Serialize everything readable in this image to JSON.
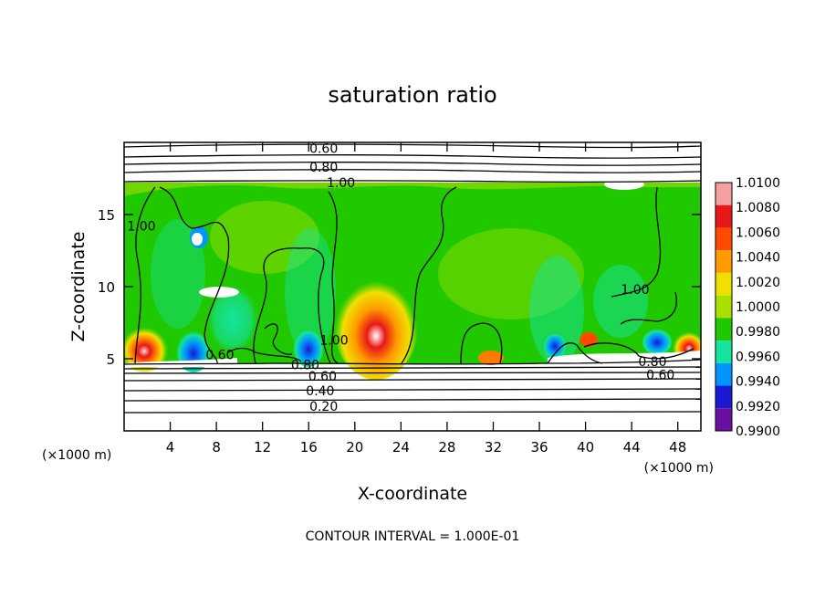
{
  "chart_data": {
    "type": "heatmap",
    "title": "saturation ratio",
    "xlabel": "X-coordinate",
    "ylabel": "Z-coordinate",
    "x_unit_label": "(×1000 m)",
    "z_unit_label": "(×1000 m)",
    "footer": "CONTOUR INTERVAL = 1.000E-01",
    "xlim": [
      0,
      50
    ],
    "ylim": [
      0,
      20
    ],
    "x_ticks": [
      4,
      8,
      12,
      16,
      20,
      24,
      28,
      32,
      36,
      40,
      44,
      48
    ],
    "y_ticks": [
      5,
      10,
      15
    ],
    "colorbar": {
      "levels": [
        "1.0100",
        "1.0080",
        "1.0060",
        "1.0040",
        "1.0020",
        "1.0000",
        "0.9980",
        "0.9960",
        "0.9940",
        "0.9920",
        "0.9900"
      ],
      "colors": [
        "#f4a0a0",
        "#e81818",
        "#ff4a00",
        "#ff9a00",
        "#f0e000",
        "#a8e000",
        "#20c800",
        "#14e4a0",
        "#0096ff",
        "#1a1ad2",
        "#6a10a0"
      ]
    },
    "contour_labels": [
      {
        "text": "0.60",
        "x": 17.3,
        "z": 19.6
      },
      {
        "text": "0.80",
        "x": 17.3,
        "z": 18.3
      },
      {
        "text": "1.00",
        "x": 18.8,
        "z": 17.2
      },
      {
        "text": "1.00",
        "x": 1.5,
        "z": 14.2
      },
      {
        "text": "1.00",
        "x": 18.2,
        "z": 6.3
      },
      {
        "text": "1.00",
        "x": 44.3,
        "z": 9.8
      },
      {
        "text": "0.80",
        "x": 15.7,
        "z": 4.6
      },
      {
        "text": "0.60",
        "x": 17.2,
        "z": 3.8
      },
      {
        "text": "0.40",
        "x": 17.0,
        "z": 2.8
      },
      {
        "text": "0.20",
        "x": 17.3,
        "z": 1.7
      },
      {
        "text": "0.60",
        "x": 46.5,
        "z": 3.9
      },
      {
        "text": "0.80",
        "x": 45.8,
        "z": 4.8
      },
      {
        "text": "0.60",
        "x": 8.3,
        "z": 5.3
      }
    ]
  }
}
